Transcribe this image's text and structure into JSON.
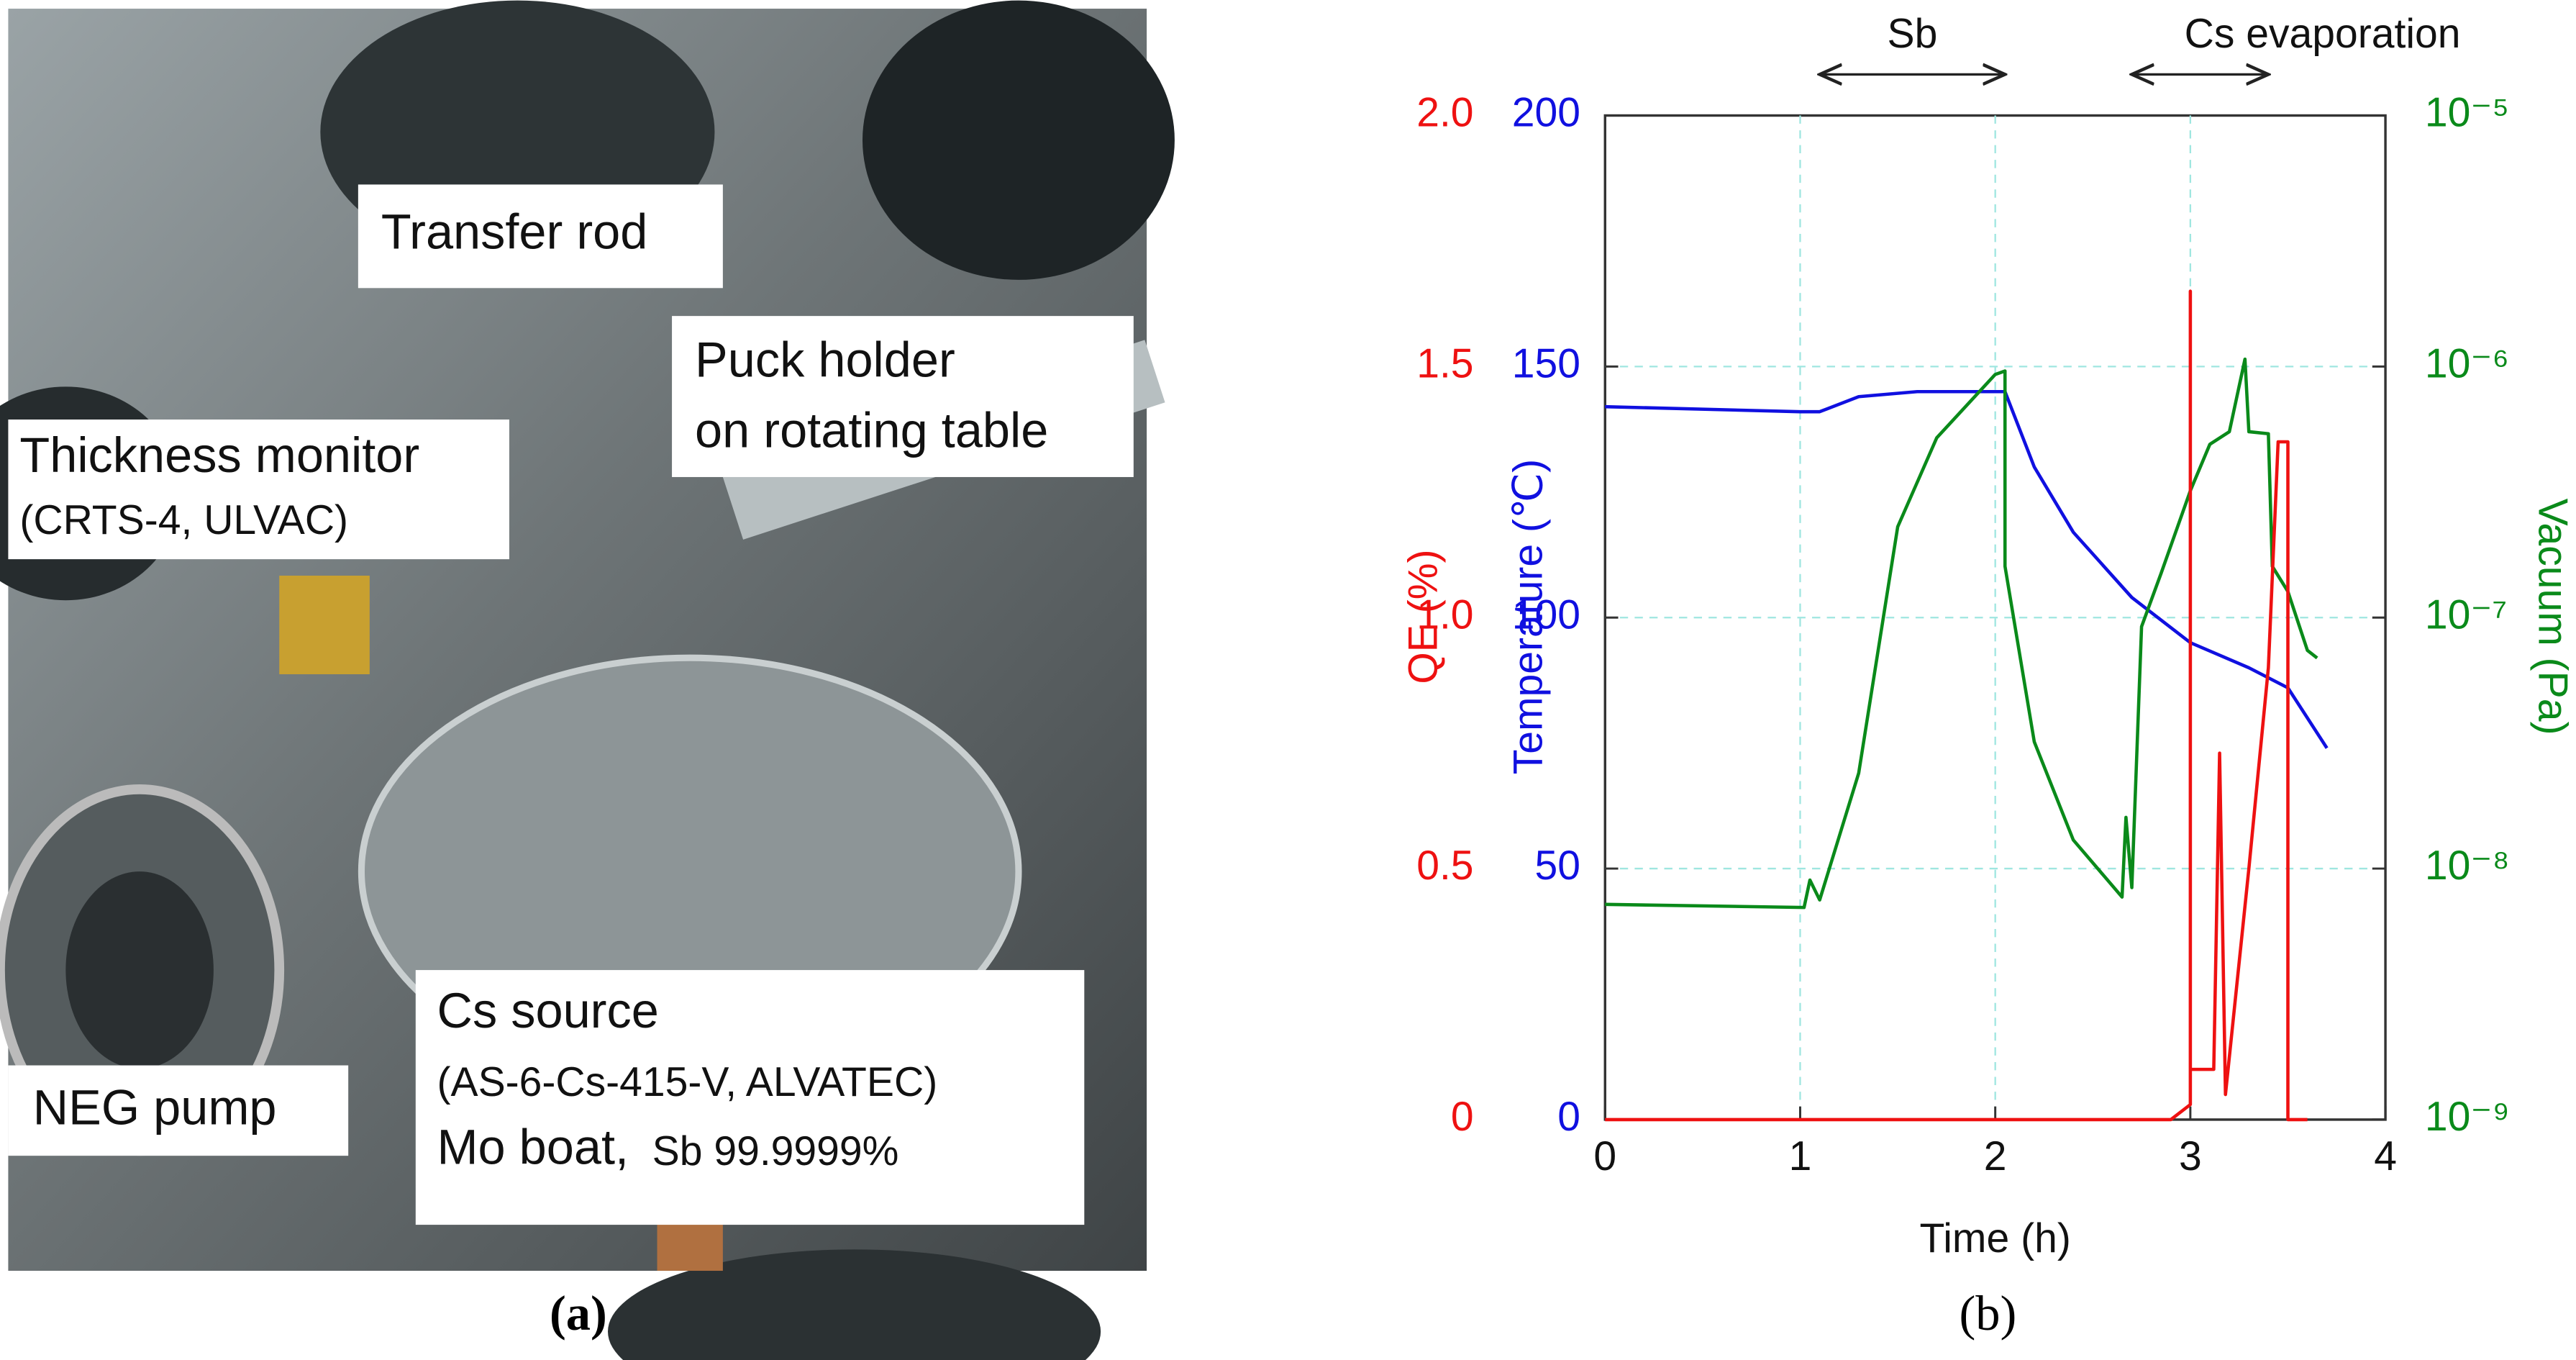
{
  "photo": {
    "labels": [
      "Transfer rod",
      "Puck holder",
      "on rotating table",
      "Thickness monitor",
      "(CRTS-4, ULVAC)",
      "NEG pump",
      "Cs source",
      "(AS-6-Cs-415-V, ALVATEC)",
      "Mo boat,",
      "Sb 99.9999%"
    ]
  },
  "captions": [
    "(a)",
    "(b)"
  ],
  "chart_data": {
    "type": "line",
    "xlabel": "Time (h)",
    "ylabel": "QE (%)",
    "y3label": "Temperature (℃)",
    "y2label": "Vacuum (Pa)",
    "annotations": [
      "Sb",
      "Cs evaporation"
    ],
    "xlim": [
      0,
      4
    ],
    "xticks": [
      0,
      1,
      2,
      3,
      4
    ],
    "ylim": [
      0,
      2
    ],
    "yticks": [
      0,
      0.5,
      {
        "value": 1,
        "label": "1.0"
      },
      1.5,
      {
        "value": 2,
        "label": "2.0"
      }
    ],
    "y3lim": [
      0,
      200
    ],
    "y3ticks": [
      0,
      50,
      100,
      150,
      200
    ],
    "y2lim": [
      1e-09,
      1e-05
    ],
    "y2log": true,
    "y2ticks": [
      {
        "value": 1e-09,
        "label": "10⁻⁹"
      },
      {
        "value": 1e-08,
        "label": "10⁻⁸"
      },
      {
        "value": 1e-07,
        "label": "10⁻⁷"
      },
      {
        "value": 1e-06,
        "label": "10⁻⁶"
      },
      {
        "value": 1e-05,
        "label": "10⁻⁵"
      }
    ],
    "grid": true,
    "series": [
      {
        "name": "Temperature",
        "axis": "y3",
        "color": "#1010e0",
        "x": [
          0,
          1,
          1.1,
          1.3,
          1.6,
          2.0,
          2.05,
          2.2,
          2.4,
          2.7,
          3.0,
          3.3,
          3.5,
          3.7
        ],
        "values": [
          142,
          141,
          141,
          144,
          145,
          145,
          145,
          130,
          117,
          104,
          95,
          90,
          86,
          74
        ]
      },
      {
        "name": "Vacuum",
        "axis": "y2",
        "color": "#0a8a1a",
        "x": [
          0,
          1.02,
          1.05,
          1.1,
          1.3,
          1.5,
          1.7,
          2.0,
          2.05,
          2.05,
          2.2,
          2.4,
          2.65,
          2.67,
          2.7,
          2.75,
          2.85,
          3.0,
          3.1,
          3.2,
          3.28,
          3.3,
          3.4,
          3.42,
          3.5,
          3.6,
          3.65
        ],
        "values": [
          7.2e-09,
          7e-09,
          9e-09,
          7.5e-09,
          2.4e-08,
          2.3e-07,
          5.2e-07,
          9.3e-07,
          9.6e-07,
          1.6e-07,
          3.2e-08,
          1.3e-08,
          7.7e-09,
          1.6e-08,
          8.4e-09,
          9.2e-08,
          1.5e-07,
          3.2e-07,
          4.9e-07,
          5.5e-07,
          1.07e-06,
          5.5e-07,
          5.4e-07,
          1.6e-07,
          1.27e-07,
          7.4e-08,
          6.9e-08
        ]
      },
      {
        "name": "QE",
        "axis": "y",
        "color": "#ee1111",
        "x": [
          0,
          2.9,
          3.0,
          3.0,
          3.0,
          3.12,
          3.15,
          3.18,
          3.3,
          3.4,
          3.45,
          3.5,
          3.5,
          3.6
        ],
        "values": [
          0,
          0,
          0.03,
          1.65,
          0.1,
          0.1,
          0.73,
          0.05,
          0.5,
          0.9,
          1.35,
          1.35,
          0,
          0
        ]
      }
    ]
  }
}
